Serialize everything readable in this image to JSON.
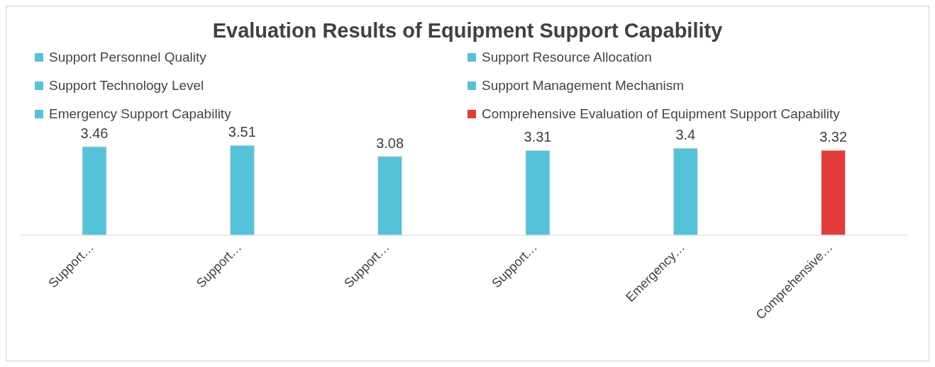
{
  "chart_data": {
    "type": "bar",
    "title": "Evaluation Results of Equipment Support Capability",
    "categories": [
      "Support…",
      "Support…",
      "Support…",
      "Support…",
      "Emergency…",
      "Comprehensive…"
    ],
    "series": [
      {
        "name": "Support Personnel Quality",
        "color": "#54c2d8",
        "values": [
          3.46,
          null,
          null,
          null,
          null,
          null
        ]
      },
      {
        "name": "Support Resource Allocation",
        "color": "#54c2d8",
        "values": [
          null,
          3.51,
          null,
          null,
          null,
          null
        ]
      },
      {
        "name": "Support Technology Level",
        "color": "#54c2d8",
        "values": [
          null,
          null,
          3.08,
          null,
          null,
          null
        ]
      },
      {
        "name": "Support Management Mechanism",
        "color": "#54c2d8",
        "values": [
          null,
          null,
          null,
          3.31,
          null,
          null
        ]
      },
      {
        "name": "Emergency Support Capability",
        "color": "#54c2d8",
        "values": [
          null,
          null,
          null,
          null,
          3.4,
          null
        ]
      },
      {
        "name": "Comprehensive Evaluation of Equipment Support Capability",
        "color": "#e23b3b",
        "values": [
          null,
          null,
          null,
          null,
          null,
          3.32
        ]
      }
    ],
    "data_labels": true,
    "legend": "top",
    "grid": false
  }
}
